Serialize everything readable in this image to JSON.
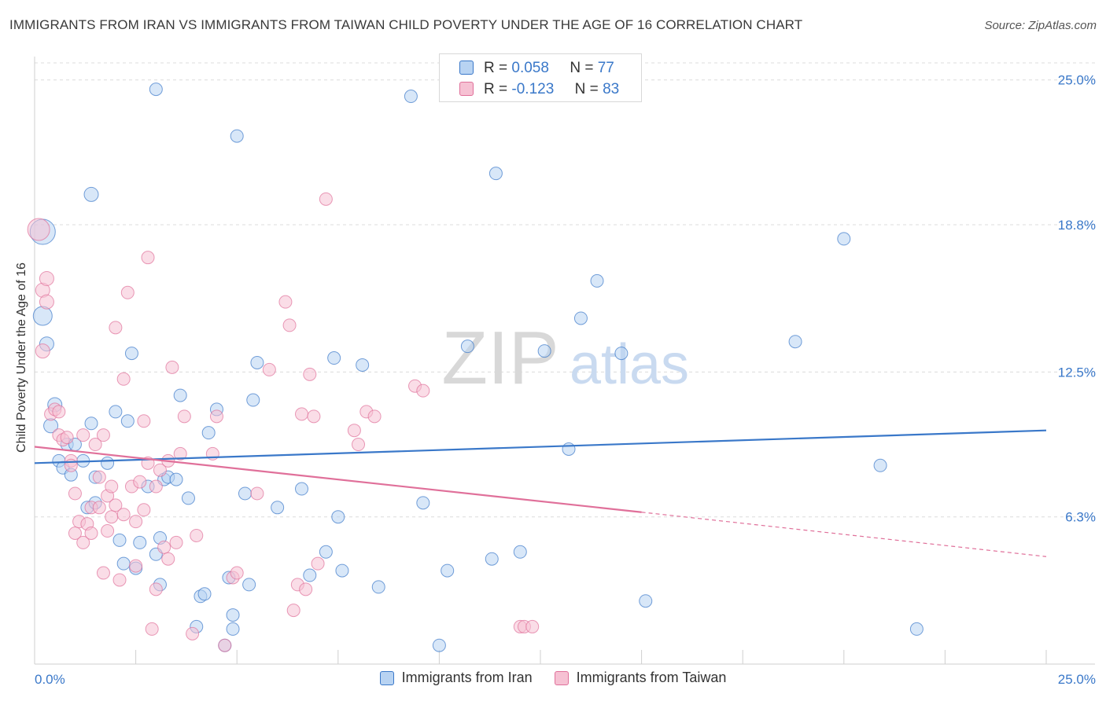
{
  "title": "IMMIGRANTS FROM IRAN VS IMMIGRANTS FROM TAIWAN CHILD POVERTY UNDER THE AGE OF 16 CORRELATION CHART",
  "source": "Source: ZipAtlas.com",
  "watermark": {
    "zip": "ZIP",
    "atlas": "atlas"
  },
  "colors": {
    "iran": "#3a78c9",
    "iran_fill": "#b8d3f2",
    "taiwan": "#e0709a",
    "taiwan_fill": "#f6c1d3",
    "value_text": "#3a78c9"
  },
  "stats": [
    {
      "r_label": "R =",
      "r_value": "0.058",
      "n_label": "N =",
      "n_value": "77"
    },
    {
      "r_label": "R =",
      "r_value": "-0.123",
      "n_label": "N =",
      "n_value": "83"
    }
  ],
  "chart_data": {
    "type": "scatter",
    "title": "IMMIGRANTS FROM IRAN VS IMMIGRANTS FROM TAIWAN CHILD POVERTY UNDER THE AGE OF 16 CORRELATION CHART",
    "xlabel": "",
    "ylabel": "Child Poverty Under the Age of 16",
    "xlim": [
      0,
      25
    ],
    "ylim": [
      0,
      26
    ],
    "x_tick_labels": [
      {
        "value": 0,
        "label": "0.0%"
      },
      {
        "value": 25,
        "label": "25.0%"
      }
    ],
    "y_tick_labels": [
      {
        "value": 6.3,
        "label": "6.3%"
      },
      {
        "value": 12.5,
        "label": "12.5%"
      },
      {
        "value": 18.8,
        "label": "18.8%"
      },
      {
        "value": 25.0,
        "label": "25.0%"
      }
    ],
    "grid": true,
    "legend": "bottom",
    "series": [
      {
        "name": "Immigrants from Iran",
        "color": "#3a78c9",
        "trend": {
          "x": [
            0,
            25
          ],
          "y": [
            8.6,
            10.0
          ]
        },
        "points": [
          {
            "x": 0.2,
            "y": 18.5,
            "r": 16
          },
          {
            "x": 0.2,
            "y": 14.9,
            "r": 12
          },
          {
            "x": 0.3,
            "y": 13.7,
            "r": 9
          },
          {
            "x": 0.4,
            "y": 10.2,
            "r": 9
          },
          {
            "x": 0.5,
            "y": 11.1,
            "r": 9
          },
          {
            "x": 0.6,
            "y": 8.7,
            "r": 8
          },
          {
            "x": 0.7,
            "y": 8.4,
            "r": 8
          },
          {
            "x": 0.8,
            "y": 9.4,
            "r": 8
          },
          {
            "x": 0.9,
            "y": 8.1,
            "r": 8
          },
          {
            "x": 1.0,
            "y": 9.4,
            "r": 8
          },
          {
            "x": 1.2,
            "y": 8.7,
            "r": 8
          },
          {
            "x": 1.3,
            "y": 6.7,
            "r": 8
          },
          {
            "x": 1.5,
            "y": 8.0,
            "r": 8
          },
          {
            "x": 1.5,
            "y": 6.9,
            "r": 8
          },
          {
            "x": 1.4,
            "y": 10.3,
            "r": 8
          },
          {
            "x": 1.4,
            "y": 20.1,
            "r": 9
          },
          {
            "x": 1.8,
            "y": 8.6,
            "r": 8
          },
          {
            "x": 2.0,
            "y": 10.8,
            "r": 8
          },
          {
            "x": 2.1,
            "y": 5.3,
            "r": 8
          },
          {
            "x": 2.2,
            "y": 4.3,
            "r": 8
          },
          {
            "x": 2.3,
            "y": 10.4,
            "r": 8
          },
          {
            "x": 2.4,
            "y": 13.3,
            "r": 8
          },
          {
            "x": 2.5,
            "y": 4.1,
            "r": 8
          },
          {
            "x": 2.6,
            "y": 5.2,
            "r": 8
          },
          {
            "x": 2.8,
            "y": 7.6,
            "r": 8
          },
          {
            "x": 3.0,
            "y": 24.6,
            "r": 8
          },
          {
            "x": 3.0,
            "y": 4.7,
            "r": 8
          },
          {
            "x": 3.1,
            "y": 3.4,
            "r": 8
          },
          {
            "x": 3.1,
            "y": 5.4,
            "r": 8
          },
          {
            "x": 3.2,
            "y": 7.9,
            "r": 8
          },
          {
            "x": 3.3,
            "y": 8.0,
            "r": 8
          },
          {
            "x": 3.5,
            "y": 7.9,
            "r": 8
          },
          {
            "x": 3.6,
            "y": 11.5,
            "r": 8
          },
          {
            "x": 3.8,
            "y": 7.1,
            "r": 8
          },
          {
            "x": 4.0,
            "y": 1.6,
            "r": 8
          },
          {
            "x": 4.1,
            "y": 2.9,
            "r": 8
          },
          {
            "x": 4.2,
            "y": 3.0,
            "r": 8
          },
          {
            "x": 4.3,
            "y": 9.9,
            "r": 8
          },
          {
            "x": 4.5,
            "y": 10.9,
            "r": 8
          },
          {
            "x": 4.7,
            "y": 0.8,
            "r": 8
          },
          {
            "x": 4.8,
            "y": 3.7,
            "r": 8
          },
          {
            "x": 4.9,
            "y": 2.1,
            "r": 8
          },
          {
            "x": 4.9,
            "y": 1.5,
            "r": 8
          },
          {
            "x": 5.0,
            "y": 22.6,
            "r": 8
          },
          {
            "x": 5.2,
            "y": 7.3,
            "r": 8
          },
          {
            "x": 5.3,
            "y": 3.4,
            "r": 8
          },
          {
            "x": 5.4,
            "y": 11.3,
            "r": 8
          },
          {
            "x": 5.5,
            "y": 12.9,
            "r": 8
          },
          {
            "x": 6.0,
            "y": 6.7,
            "r": 8
          },
          {
            "x": 6.6,
            "y": 7.5,
            "r": 8
          },
          {
            "x": 6.8,
            "y": 3.8,
            "r": 8
          },
          {
            "x": 7.2,
            "y": 4.8,
            "r": 8
          },
          {
            "x": 7.4,
            "y": 13.1,
            "r": 8
          },
          {
            "x": 7.5,
            "y": 6.3,
            "r": 8
          },
          {
            "x": 7.6,
            "y": 4.0,
            "r": 8
          },
          {
            "x": 8.1,
            "y": 12.8,
            "r": 8
          },
          {
            "x": 8.5,
            "y": 3.3,
            "r": 8
          },
          {
            "x": 9.3,
            "y": 24.3,
            "r": 8
          },
          {
            "x": 9.6,
            "y": 6.9,
            "r": 8
          },
          {
            "x": 10.0,
            "y": 0.8,
            "r": 8
          },
          {
            "x": 10.2,
            "y": 4.0,
            "r": 8
          },
          {
            "x": 10.7,
            "y": 13.6,
            "r": 8
          },
          {
            "x": 11.3,
            "y": 4.5,
            "r": 8
          },
          {
            "x": 11.4,
            "y": 21.0,
            "r": 8
          },
          {
            "x": 12.0,
            "y": 4.8,
            "r": 8
          },
          {
            "x": 12.6,
            "y": 13.4,
            "r": 8
          },
          {
            "x": 13.2,
            "y": 9.2,
            "r": 8
          },
          {
            "x": 13.5,
            "y": 14.8,
            "r": 8
          },
          {
            "x": 13.9,
            "y": 16.4,
            "r": 8
          },
          {
            "x": 14.5,
            "y": 13.3,
            "r": 8
          },
          {
            "x": 15.1,
            "y": 2.7,
            "r": 8
          },
          {
            "x": 18.8,
            "y": 13.8,
            "r": 8
          },
          {
            "x": 20.0,
            "y": 18.2,
            "r": 8
          },
          {
            "x": 20.9,
            "y": 8.5,
            "r": 8
          },
          {
            "x": 21.8,
            "y": 1.5,
            "r": 8
          }
        ]
      },
      {
        "name": "Immigrants from Taiwan",
        "color": "#e0709a",
        "trend": {
          "x": [
            0,
            15
          ],
          "y": [
            9.3,
            6.5
          ]
        },
        "trend_dashed": {
          "x": [
            15,
            25
          ],
          "y": [
            6.5,
            4.6
          ]
        },
        "points": [
          {
            "x": 0.1,
            "y": 18.6,
            "r": 14
          },
          {
            "x": 0.2,
            "y": 16.0,
            "r": 9
          },
          {
            "x": 0.2,
            "y": 13.4,
            "r": 9
          },
          {
            "x": 0.3,
            "y": 15.5,
            "r": 9
          },
          {
            "x": 0.3,
            "y": 16.5,
            "r": 9
          },
          {
            "x": 0.4,
            "y": 10.7,
            "r": 8
          },
          {
            "x": 0.5,
            "y": 10.9,
            "r": 8
          },
          {
            "x": 0.6,
            "y": 10.8,
            "r": 8
          },
          {
            "x": 0.6,
            "y": 9.8,
            "r": 8
          },
          {
            "x": 0.7,
            "y": 9.6,
            "r": 8
          },
          {
            "x": 0.8,
            "y": 9.7,
            "r": 8
          },
          {
            "x": 0.9,
            "y": 8.7,
            "r": 8
          },
          {
            "x": 0.9,
            "y": 8.5,
            "r": 8
          },
          {
            "x": 1.0,
            "y": 7.3,
            "r": 8
          },
          {
            "x": 1.0,
            "y": 5.6,
            "r": 8
          },
          {
            "x": 1.1,
            "y": 6.1,
            "r": 8
          },
          {
            "x": 1.2,
            "y": 5.2,
            "r": 8
          },
          {
            "x": 1.2,
            "y": 9.8,
            "r": 8
          },
          {
            "x": 1.3,
            "y": 6.0,
            "r": 8
          },
          {
            "x": 1.4,
            "y": 5.6,
            "r": 8
          },
          {
            "x": 1.4,
            "y": 6.7,
            "r": 8
          },
          {
            "x": 1.5,
            "y": 9.4,
            "r": 8
          },
          {
            "x": 1.6,
            "y": 6.7,
            "r": 8
          },
          {
            "x": 1.6,
            "y": 8.0,
            "r": 8
          },
          {
            "x": 1.7,
            "y": 3.9,
            "r": 8
          },
          {
            "x": 1.7,
            "y": 9.8,
            "r": 8
          },
          {
            "x": 1.8,
            "y": 5.7,
            "r": 8
          },
          {
            "x": 1.8,
            "y": 7.2,
            "r": 8
          },
          {
            "x": 1.9,
            "y": 6.3,
            "r": 8
          },
          {
            "x": 1.9,
            "y": 7.6,
            "r": 8
          },
          {
            "x": 2.0,
            "y": 6.8,
            "r": 8
          },
          {
            "x": 2.0,
            "y": 14.4,
            "r": 8
          },
          {
            "x": 2.1,
            "y": 3.6,
            "r": 8
          },
          {
            "x": 2.2,
            "y": 6.4,
            "r": 8
          },
          {
            "x": 2.2,
            "y": 12.2,
            "r": 8
          },
          {
            "x": 2.3,
            "y": 15.9,
            "r": 8
          },
          {
            "x": 2.4,
            "y": 7.6,
            "r": 8
          },
          {
            "x": 2.5,
            "y": 4.2,
            "r": 8
          },
          {
            "x": 2.5,
            "y": 6.1,
            "r": 8
          },
          {
            "x": 2.6,
            "y": 7.8,
            "r": 8
          },
          {
            "x": 2.7,
            "y": 10.4,
            "r": 8
          },
          {
            "x": 2.7,
            "y": 6.6,
            "r": 8
          },
          {
            "x": 2.8,
            "y": 8.6,
            "r": 8
          },
          {
            "x": 2.8,
            "y": 17.4,
            "r": 8
          },
          {
            "x": 2.9,
            "y": 1.5,
            "r": 8
          },
          {
            "x": 3.0,
            "y": 7.6,
            "r": 8
          },
          {
            "x": 3.0,
            "y": 3.2,
            "r": 8
          },
          {
            "x": 3.1,
            "y": 8.3,
            "r": 8
          },
          {
            "x": 3.2,
            "y": 5.0,
            "r": 8
          },
          {
            "x": 3.3,
            "y": 4.5,
            "r": 8
          },
          {
            "x": 3.3,
            "y": 8.7,
            "r": 8
          },
          {
            "x": 3.4,
            "y": 12.7,
            "r": 8
          },
          {
            "x": 3.5,
            "y": 5.2,
            "r": 8
          },
          {
            "x": 3.6,
            "y": 9.0,
            "r": 8
          },
          {
            "x": 3.7,
            "y": 10.6,
            "r": 8
          },
          {
            "x": 3.9,
            "y": 1.3,
            "r": 8
          },
          {
            "x": 4.0,
            "y": 5.5,
            "r": 8
          },
          {
            "x": 4.4,
            "y": 9.0,
            "r": 8
          },
          {
            "x": 4.5,
            "y": 10.6,
            "r": 8
          },
          {
            "x": 4.7,
            "y": 0.8,
            "r": 8
          },
          {
            "x": 4.9,
            "y": 3.7,
            "r": 8
          },
          {
            "x": 5.0,
            "y": 3.9,
            "r": 8
          },
          {
            "x": 5.5,
            "y": 7.3,
            "r": 8
          },
          {
            "x": 5.8,
            "y": 12.6,
            "r": 8
          },
          {
            "x": 6.2,
            "y": 15.5,
            "r": 8
          },
          {
            "x": 6.3,
            "y": 14.5,
            "r": 8
          },
          {
            "x": 6.4,
            "y": 2.3,
            "r": 8
          },
          {
            "x": 6.5,
            "y": 3.4,
            "r": 8
          },
          {
            "x": 6.6,
            "y": 10.7,
            "r": 8
          },
          {
            "x": 6.7,
            "y": 3.2,
            "r": 8
          },
          {
            "x": 6.8,
            "y": 12.4,
            "r": 8
          },
          {
            "x": 6.9,
            "y": 10.6,
            "r": 8
          },
          {
            "x": 7.0,
            "y": 4.3,
            "r": 8
          },
          {
            "x": 7.2,
            "y": 19.9,
            "r": 8
          },
          {
            "x": 7.9,
            "y": 10.0,
            "r": 8
          },
          {
            "x": 8.0,
            "y": 9.4,
            "r": 8
          },
          {
            "x": 8.2,
            "y": 10.8,
            "r": 8
          },
          {
            "x": 8.4,
            "y": 10.6,
            "r": 8
          },
          {
            "x": 9.4,
            "y": 11.9,
            "r": 8
          },
          {
            "x": 9.6,
            "y": 11.7,
            "r": 8
          },
          {
            "x": 12.0,
            "y": 1.6,
            "r": 8
          },
          {
            "x": 12.1,
            "y": 1.6,
            "r": 8
          },
          {
            "x": 12.3,
            "y": 1.6,
            "r": 8
          }
        ]
      }
    ]
  }
}
